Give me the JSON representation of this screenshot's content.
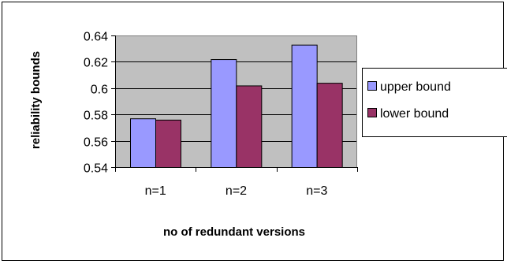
{
  "chart_data": {
    "type": "bar",
    "title": "",
    "xlabel": "no of redundant versions",
    "ylabel": "reliability bounds",
    "categories": [
      "n=1",
      "n=2",
      "n=3"
    ],
    "series": [
      {
        "name": "upper bound",
        "color": "#9999ff",
        "values": [
          0.577,
          0.622,
          0.633
        ]
      },
      {
        "name": "lower bound",
        "color": "#993366",
        "values": [
          0.576,
          0.602,
          0.604
        ]
      }
    ],
    "ylim": [
      0.54,
      0.64
    ],
    "yticks": [
      0.54,
      0.56,
      0.58,
      0.6,
      0.62,
      0.64
    ],
    "ytick_labels": [
      "0.54",
      "0.56",
      "0.58",
      "0.6",
      "0.62",
      "0.64"
    ],
    "grid": true,
    "plot_background": "#c0c0c0",
    "legend_position": "right"
  }
}
